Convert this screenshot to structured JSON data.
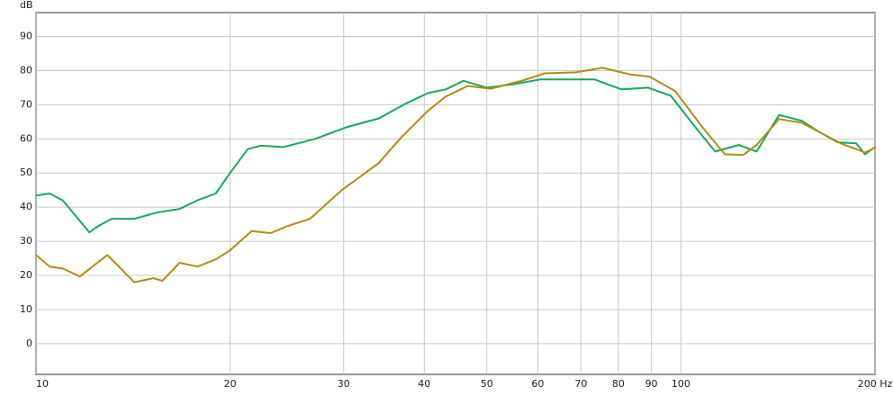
{
  "chart_data": {
    "type": "line",
    "y_unit_label": "dB",
    "log_x": true,
    "grid": true,
    "xlim": [
      10,
      200
    ],
    "ylim": [
      -9,
      97
    ],
    "xticks": [
      10,
      20,
      30,
      40,
      50,
      60,
      70,
      80,
      90,
      100,
      {
        "value": 200,
        "label": "200 Hz"
      }
    ],
    "yticks": [
      0,
      10,
      20,
      30,
      40,
      50,
      60,
      70,
      80,
      90
    ],
    "series": [
      {
        "color": "#1aa860",
        "x": [
          10,
          10.5,
          11,
          12.1,
          12.5,
          13.1,
          14.2,
          15.4,
          16.7,
          17.8,
          19,
          20,
          21.3,
          22.3,
          24.2,
          27.1,
          30.3,
          34,
          37.4,
          40.5,
          43.2,
          46,
          50,
          55,
          60.5,
          66.5,
          73.5,
          80.9,
          89,
          96.5,
          104,
          113,
          123,
          131,
          142,
          154,
          164,
          175,
          187,
          193,
          200
        ],
        "values": [
          43.4,
          44,
          42,
          32.6,
          34.5,
          36.6,
          36.6,
          38.4,
          39.5,
          42,
          44,
          50,
          57,
          58,
          57.6,
          60,
          63.4,
          66,
          70.3,
          73.4,
          74.5,
          77,
          75,
          76,
          77.4,
          77.4,
          77.4,
          74.5,
          75,
          72.6,
          64.7,
          56.3,
          58.2,
          56.3,
          67,
          65.3,
          62,
          59,
          58.7,
          55.5,
          57.6
        ]
      },
      {
        "color": "#b08c1a",
        "x": [
          10,
          10.5,
          11,
          11.7,
          12.9,
          14.2,
          15.2,
          15.7,
          16.7,
          17.8,
          19,
          20,
          21.6,
          23.1,
          24.6,
          26.6,
          29.8,
          34,
          36.8,
          40.5,
          43.2,
          46.7,
          50.7,
          56.8,
          61.5,
          68.7,
          75.6,
          83.3,
          89.5,
          98,
          108,
          117,
          125,
          131,
          142,
          154,
          164,
          177,
          193,
          200
        ],
        "values": [
          26,
          22.6,
          22,
          19.7,
          26,
          18,
          19.2,
          18.4,
          23.7,
          22.6,
          24.7,
          27.4,
          33,
          32.4,
          34.5,
          36.6,
          45,
          52.9,
          60.3,
          68.2,
          72.4,
          75.5,
          74.7,
          77.1,
          79.2,
          79.5,
          80.8,
          78.9,
          78.2,
          74,
          63.4,
          55.5,
          55.3,
          58.2,
          65.8,
          64.7,
          62,
          58.7,
          56,
          57.4
        ]
      }
    ]
  }
}
